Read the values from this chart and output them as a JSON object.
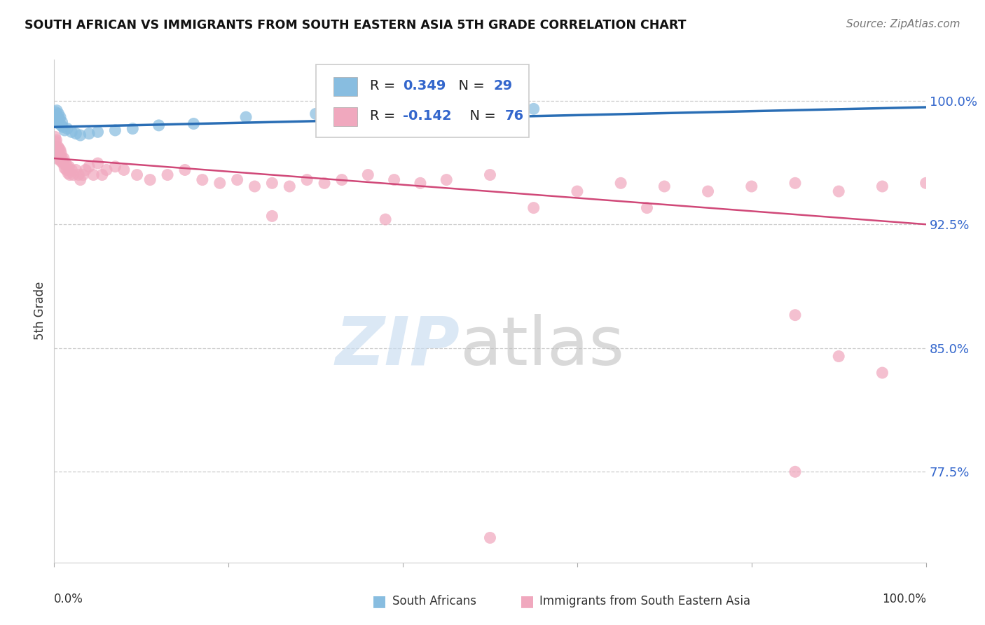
{
  "title": "SOUTH AFRICAN VS IMMIGRANTS FROM SOUTH EASTERN ASIA 5TH GRADE CORRELATION CHART",
  "source": "Source: ZipAtlas.com",
  "ylabel": "5th Grade",
  "xlim": [
    0.0,
    100.0
  ],
  "ylim": [
    72.0,
    102.5
  ],
  "yticks": [
    77.5,
    85.0,
    92.5,
    100.0
  ],
  "ytick_labels": [
    "77.5%",
    "85.0%",
    "92.5%",
    "100.0%"
  ],
  "blue_color": "#88bde0",
  "pink_color": "#f0a8be",
  "blue_line_color": "#2a6eb5",
  "pink_line_color": "#d04878",
  "blue_x": [
    0.15,
    0.2,
    0.25,
    0.3,
    0.35,
    0.4,
    0.45,
    0.5,
    0.55,
    0.6,
    0.7,
    0.8,
    0.9,
    1.0,
    1.2,
    1.5,
    2.0,
    2.5,
    3.0,
    4.0,
    5.0,
    7.0,
    9.0,
    12.0,
    16.0,
    22.0,
    30.0,
    42.0,
    55.0
  ],
  "blue_y": [
    99.3,
    99.1,
    98.9,
    99.4,
    98.8,
    99.0,
    98.7,
    99.2,
    98.6,
    98.9,
    99.0,
    98.5,
    98.7,
    98.4,
    98.2,
    98.3,
    98.1,
    98.0,
    97.9,
    98.0,
    98.1,
    98.2,
    98.3,
    98.5,
    98.6,
    99.0,
    99.2,
    99.3,
    99.5
  ],
  "pink_x": [
    0.1,
    0.15,
    0.2,
    0.25,
    0.3,
    0.35,
    0.4,
    0.45,
    0.5,
    0.55,
    0.6,
    0.65,
    0.7,
    0.75,
    0.8,
    0.85,
    0.9,
    1.0,
    1.1,
    1.2,
    1.3,
    1.4,
    1.5,
    1.6,
    1.7,
    1.8,
    2.0,
    2.2,
    2.5,
    2.8,
    3.0,
    3.3,
    3.6,
    4.0,
    4.5,
    5.0,
    5.5,
    6.0,
    7.0,
    8.0,
    9.5,
    11.0,
    13.0,
    15.0,
    17.0,
    19.0,
    21.0,
    23.0,
    25.0,
    27.0,
    29.0,
    31.0,
    33.0,
    36.0,
    39.0,
    42.0,
    45.0,
    50.0,
    55.0,
    60.0,
    65.0,
    70.0,
    75.0,
    80.0,
    85.0,
    90.0,
    95.0,
    100.0,
    25.0,
    38.0,
    68.0,
    85.0,
    90.0,
    95.0,
    85.0,
    50.0
  ],
  "pink_y": [
    97.8,
    97.5,
    97.2,
    97.6,
    96.8,
    97.0,
    96.5,
    97.2,
    96.9,
    97.1,
    96.4,
    96.7,
    97.0,
    96.5,
    96.8,
    96.3,
    96.5,
    96.2,
    96.5,
    95.9,
    96.2,
    95.8,
    96.0,
    95.6,
    96.0,
    95.5,
    95.8,
    95.5,
    95.8,
    95.5,
    95.2,
    95.5,
    95.8,
    96.0,
    95.5,
    96.2,
    95.5,
    95.8,
    96.0,
    95.8,
    95.5,
    95.2,
    95.5,
    95.8,
    95.2,
    95.0,
    95.2,
    94.8,
    95.0,
    94.8,
    95.2,
    95.0,
    95.2,
    95.5,
    95.2,
    95.0,
    95.2,
    95.5,
    93.5,
    94.5,
    95.0,
    94.8,
    94.5,
    94.8,
    95.0,
    94.5,
    94.8,
    95.0,
    93.0,
    92.8,
    93.5,
    87.0,
    84.5,
    83.5,
    77.5,
    73.5
  ]
}
